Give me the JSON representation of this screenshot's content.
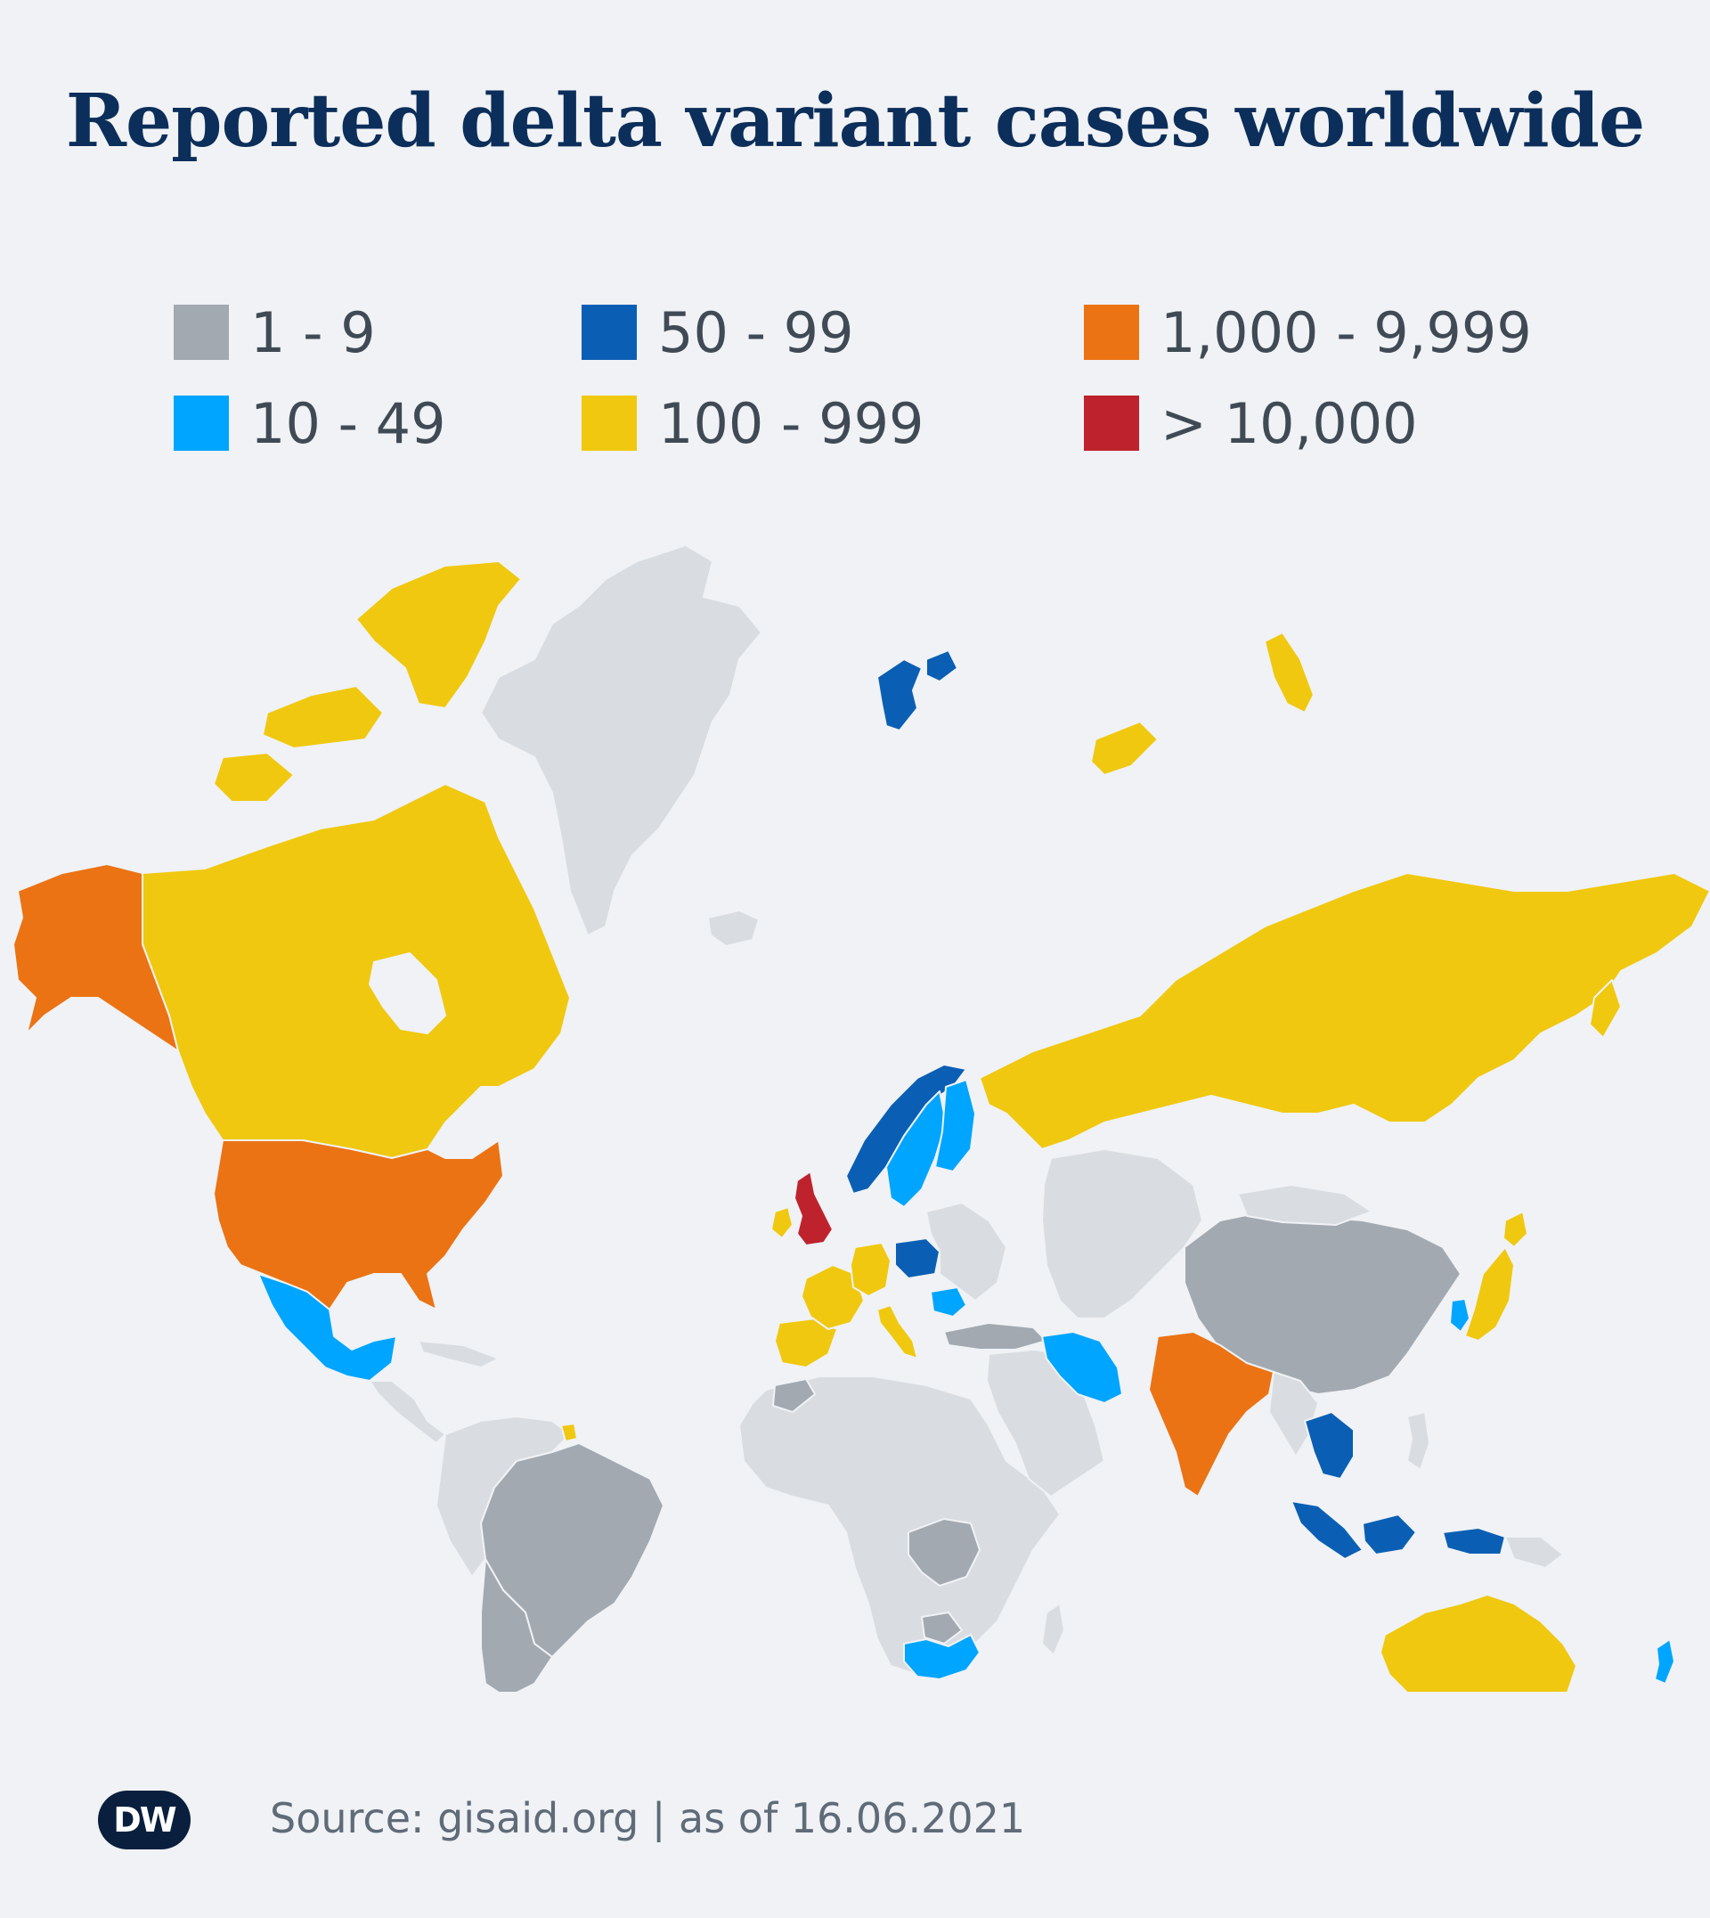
{
  "title": "Reported delta variant cases worldwide",
  "legend": [
    {
      "label": "1 - 9",
      "color": "#a2a9b1"
    },
    {
      "label": "10 - 49",
      "color": "#00a5ff"
    },
    {
      "label": "50 - 99",
      "color": "#0a5fb4"
    },
    {
      "label": "100 - 999",
      "color": "#f0c80f"
    },
    {
      "label": "1,000 - 9,999",
      "color": "#eb7314"
    },
    {
      "label": "> 10,000",
      "color": "#be232d"
    }
  ],
  "no_data_color": "#d9dde2",
  "regions": [
    {
      "name": "United Kingdom",
      "category": "> 10,000"
    },
    {
      "name": "United States",
      "category": "1,000 - 9,999"
    },
    {
      "name": "Alaska",
      "category": "1,000 - 9,999"
    },
    {
      "name": "India",
      "category": "1,000 - 9,999"
    },
    {
      "name": "Canada",
      "category": "100 - 999"
    },
    {
      "name": "Russia",
      "category": "100 - 999"
    },
    {
      "name": "Australia",
      "category": "100 - 999"
    },
    {
      "name": "Japan",
      "category": "100 - 999"
    },
    {
      "name": "Germany",
      "category": "100 - 999"
    },
    {
      "name": "France",
      "category": "100 - 999"
    },
    {
      "name": "Spain",
      "category": "100 - 999"
    },
    {
      "name": "Italy",
      "category": "100 - 999"
    },
    {
      "name": "Ireland",
      "category": "100 - 999"
    },
    {
      "name": "Norway",
      "category": "50 - 99"
    },
    {
      "name": "Poland",
      "category": "50 - 99"
    },
    {
      "name": "Svalbard",
      "category": "50 - 99"
    },
    {
      "name": "Indonesia",
      "category": "50 - 99"
    },
    {
      "name": "Thailand",
      "category": "50 - 99"
    },
    {
      "name": "Sweden",
      "category": "10 - 49"
    },
    {
      "name": "Finland",
      "category": "10 - 49"
    },
    {
      "name": "Mexico",
      "category": "10 - 49"
    },
    {
      "name": "Iran",
      "category": "10 - 49"
    },
    {
      "name": "South Africa",
      "category": "10 - 49"
    },
    {
      "name": "New Zealand",
      "category": "10 - 49"
    },
    {
      "name": "Romania",
      "category": "10 - 49"
    },
    {
      "name": "Korea",
      "category": "10 - 49"
    },
    {
      "name": "China",
      "category": "1 - 9"
    },
    {
      "name": "Brazil",
      "category": "1 - 9"
    },
    {
      "name": "Argentina",
      "category": "1 - 9"
    },
    {
      "name": "Turkey",
      "category": "1 - 9"
    },
    {
      "name": "DR Congo",
      "category": "1 - 9"
    },
    {
      "name": "Morocco",
      "category": "1 - 9"
    }
  ],
  "footer": {
    "logo_text": "DW",
    "source": "Source: gisaid.org | as of 16.06.2021"
  }
}
